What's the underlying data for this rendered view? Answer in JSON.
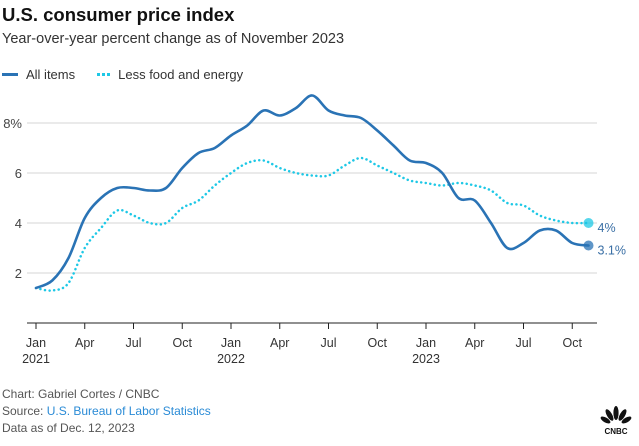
{
  "chart_data": {
    "type": "line",
    "title": "U.S. consumer price index",
    "subtitle": "Year-over-year percent change as of November 2023",
    "x_start": "2021-01",
    "x_end": "2023-11",
    "x_ticks": [
      {
        "month": 0,
        "label": "Jan",
        "year": "2021"
      },
      {
        "month": 3,
        "label": "Apr",
        "year": ""
      },
      {
        "month": 6,
        "label": "Jul",
        "year": ""
      },
      {
        "month": 9,
        "label": "Oct",
        "year": ""
      },
      {
        "month": 12,
        "label": "Jan",
        "year": "2022"
      },
      {
        "month": 15,
        "label": "Apr",
        "year": ""
      },
      {
        "month": 18,
        "label": "Jul",
        "year": ""
      },
      {
        "month": 21,
        "label": "Oct",
        "year": ""
      },
      {
        "month": 24,
        "label": "Jan",
        "year": "2023"
      },
      {
        "month": 27,
        "label": "Apr",
        "year": ""
      },
      {
        "month": 30,
        "label": "Jul",
        "year": ""
      },
      {
        "month": 33,
        "label": "Oct",
        "year": ""
      }
    ],
    "y_ticks": [
      {
        "v": 2,
        "label": "2"
      },
      {
        "v": 4,
        "label": "4"
      },
      {
        "v": 6,
        "label": "6"
      },
      {
        "v": 8,
        "label": "8%"
      }
    ],
    "ylim": [
      0,
      9.5
    ],
    "grid": true,
    "legend": "top-left",
    "series": [
      {
        "name": "All items",
        "color": "#2a73b5",
        "style": "solid",
        "end_label": "3.1%",
        "values": [
          1.4,
          1.7,
          2.6,
          4.2,
          5.0,
          5.4,
          5.4,
          5.3,
          5.4,
          6.2,
          6.8,
          7.0,
          7.5,
          7.9,
          8.5,
          8.3,
          8.6,
          9.1,
          8.5,
          8.3,
          8.2,
          7.7,
          7.1,
          6.5,
          6.4,
          6.0,
          5.0,
          4.9,
          4.0,
          3.0,
          3.2,
          3.7,
          3.7,
          3.2,
          3.1
        ]
      },
      {
        "name": "Less food and energy",
        "color": "#1ec8e6",
        "style": "dotted",
        "end_label": "4%",
        "values": [
          1.4,
          1.3,
          1.6,
          3.0,
          3.8,
          4.5,
          4.3,
          4.0,
          4.0,
          4.6,
          4.9,
          5.5,
          6.0,
          6.4,
          6.5,
          6.2,
          6.0,
          5.9,
          5.9,
          6.3,
          6.6,
          6.3,
          6.0,
          5.7,
          5.6,
          5.5,
          5.6,
          5.5,
          5.3,
          4.8,
          4.7,
          4.3,
          4.1,
          4.0,
          4.0
        ]
      }
    ]
  },
  "footer": {
    "credit": "Chart: Gabriel Cortes / CNBC",
    "source_prefix": "Source: ",
    "source_link": "U.S. Bureau of Labor Statistics",
    "data_as_of": "Data as of Dec. 12, 2023"
  },
  "logo": "CNBC"
}
